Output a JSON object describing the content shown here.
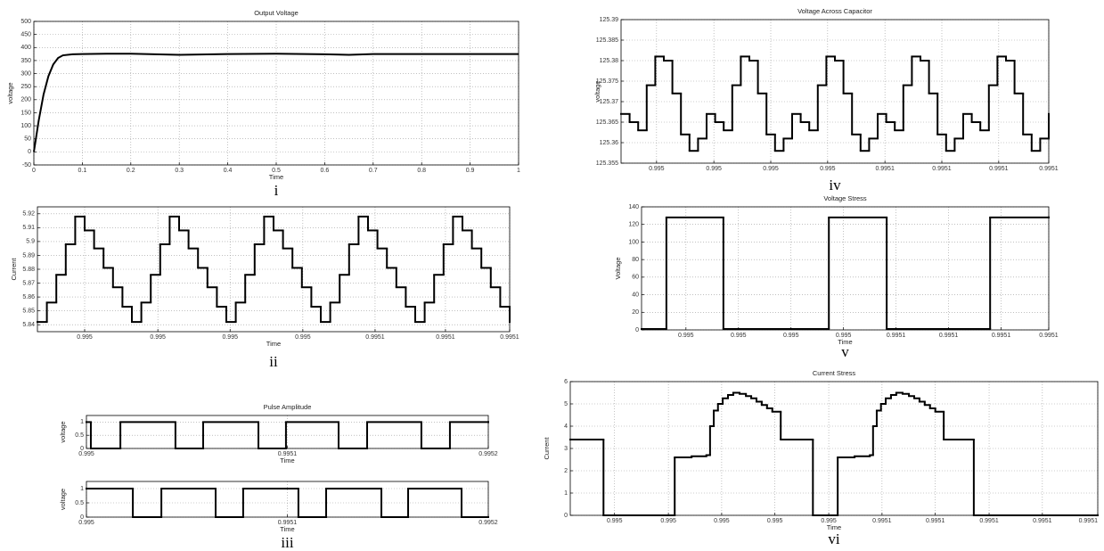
{
  "chart_data": [
    {
      "type": "line",
      "title": "Output Voltage",
      "xlabel": "Time",
      "ylabel": "voltage",
      "caption": "i",
      "x": [
        0,
        0.005,
        0.01,
        0.02,
        0.03,
        0.04,
        0.05,
        0.06,
        0.08,
        0.1,
        0.15,
        0.2,
        0.3,
        0.4,
        0.5,
        0.6,
        0.65,
        0.7,
        0.8,
        0.9,
        1
      ],
      "values": [
        0,
        60,
        120,
        220,
        290,
        335,
        360,
        370,
        374,
        375,
        376,
        376,
        372,
        375,
        376,
        374,
        372,
        375,
        375,
        375,
        375
      ],
      "color": "#000000",
      "xlim": [
        0,
        1
      ],
      "xticks": [
        0,
        0.1,
        0.2,
        0.3,
        0.4,
        0.5,
        0.6,
        0.7,
        0.8,
        0.9,
        1
      ],
      "ylim": [
        -50,
        500
      ],
      "yticks": [
        -50,
        0,
        50,
        100,
        150,
        200,
        250,
        300,
        350,
        400,
        450,
        500
      ],
      "grid": true
    },
    {
      "type": "line",
      "step": true,
      "xlabel": "Time",
      "ylabel": "Current",
      "caption": "ii",
      "x": [
        0.995,
        0.995002,
        0.995004,
        0.995006,
        0.995008,
        0.99501,
        0.995012,
        0.995014,
        0.995016,
        0.995018,
        0.99502,
        0.995022,
        0.995024,
        0.995026,
        0.995028,
        0.99503,
        0.995032,
        0.995034,
        0.995036,
        0.995038,
        0.99504,
        0.995042,
        0.995044,
        0.995046,
        0.995048,
        0.99505,
        0.995052,
        0.995054,
        0.995056,
        0.995058,
        0.99506,
        0.995062,
        0.995064,
        0.995066,
        0.995068,
        0.99507,
        0.995072,
        0.995074,
        0.995076,
        0.995078,
        0.99508,
        0.995082,
        0.995084,
        0.995086,
        0.995088,
        0.99509,
        0.995092,
        0.995094,
        0.995096,
        0.995098,
        0.9951
      ],
      "values": [
        5.842,
        5.856,
        5.876,
        5.898,
        5.918,
        5.908,
        5.895,
        5.881,
        5.867,
        5.853,
        5.842,
        5.856,
        5.876,
        5.898,
        5.918,
        5.908,
        5.895,
        5.881,
        5.867,
        5.853,
        5.842,
        5.856,
        5.876,
        5.898,
        5.918,
        5.908,
        5.895,
        5.881,
        5.867,
        5.853,
        5.842,
        5.856,
        5.876,
        5.898,
        5.918,
        5.908,
        5.895,
        5.881,
        5.867,
        5.853,
        5.842,
        5.856,
        5.876,
        5.898,
        5.918,
        5.908,
        5.895,
        5.881,
        5.867,
        5.853,
        5.842
      ],
      "color": "#000000",
      "xlim": [
        0.995,
        0.9951
      ],
      "xticks": [
        {
          "value": 0.99501,
          "label": "0.995"
        },
        {
          "value": 0.9950255,
          "label": "0.995"
        },
        {
          "value": 0.9950408,
          "label": "0.995"
        },
        {
          "value": 0.9950562,
          "label": "0.995"
        },
        {
          "value": 0.9950715,
          "label": "0.9951"
        },
        {
          "value": 0.9950864,
          "label": "0.9951"
        },
        0.9951
      ],
      "ylim": [
        5.835,
        5.925
      ],
      "yticks": [
        5.84,
        5.85,
        5.86,
        5.87,
        5.88,
        5.89,
        5.9,
        5.91,
        5.92
      ],
      "grid": true
    },
    {
      "type": "line",
      "step": true,
      "title": "Pulse Amplitude",
      "xlabel": "Time",
      "ylabel": "voltage",
      "x": [
        0.995,
        0.9950022,
        0.9950169,
        0.9950443,
        0.9950581,
        0.9950856,
        0.9950993,
        0.9951255,
        0.9951397,
        0.9951667,
        0.9951809,
        0.9952
      ],
      "values": [
        1,
        0,
        1,
        0,
        1,
        0,
        1,
        0,
        1,
        0,
        1,
        1
      ],
      "color": "#000000",
      "xlim": [
        0.995,
        0.9952
      ],
      "xticks": [
        0.995,
        0.9951,
        0.9952
      ],
      "ylim": [
        0,
        1.25
      ],
      "yticks": [
        0,
        0.5,
        1
      ],
      "grid": true
    },
    {
      "type": "line",
      "step": true,
      "xlabel": "Time",
      "ylabel": "voltage",
      "caption": "iii",
      "x": [
        0.995,
        0.9950231,
        0.9950373,
        0.9950643,
        0.995078,
        0.9951055,
        0.9951193,
        0.9951468,
        0.9951601,
        0.9951867,
        0.9952
      ],
      "values": [
        1,
        0,
        1,
        0,
        1,
        0,
        1,
        0,
        1,
        0,
        0
      ],
      "color": "#000000",
      "xlim": [
        0.995,
        0.9952
      ],
      "xticks": [
        0.995,
        0.9951,
        0.9952
      ],
      "ylim": [
        0,
        1.25
      ],
      "yticks": [
        0,
        0.5,
        1
      ],
      "grid": true
    },
    {
      "type": "line",
      "step": true,
      "title": "Voltage Across Capacitor",
      "ylabel": "voltage",
      "caption": "iv",
      "x": [
        0.995,
        0.995002,
        0.995004,
        0.995006,
        0.995008,
        0.99501,
        0.995012,
        0.995014,
        0.995016,
        0.995018,
        0.99502,
        0.995022,
        0.995024,
        0.995026,
        0.995028,
        0.99503,
        0.995032,
        0.995034,
        0.995036,
        0.995038,
        0.99504,
        0.995042,
        0.995044,
        0.995046,
        0.995048,
        0.99505,
        0.995052,
        0.995054,
        0.995056,
        0.995058,
        0.99506,
        0.995062,
        0.995064,
        0.995066,
        0.995068,
        0.99507,
        0.995072,
        0.995074,
        0.995076,
        0.995078,
        0.99508,
        0.995082,
        0.995084,
        0.995086,
        0.995088,
        0.99509,
        0.995092,
        0.995094,
        0.995096,
        0.995098,
        0.9951
      ],
      "values": [
        125.367,
        125.365,
        125.363,
        125.374,
        125.381,
        125.38,
        125.372,
        125.362,
        125.358,
        125.361,
        125.367,
        125.365,
        125.363,
        125.374,
        125.381,
        125.38,
        125.372,
        125.362,
        125.358,
        125.361,
        125.367,
        125.365,
        125.363,
        125.374,
        125.381,
        125.38,
        125.372,
        125.362,
        125.358,
        125.361,
        125.367,
        125.365,
        125.363,
        125.374,
        125.381,
        125.38,
        125.372,
        125.362,
        125.358,
        125.361,
        125.367,
        125.365,
        125.363,
        125.374,
        125.381,
        125.38,
        125.372,
        125.362,
        125.358,
        125.361,
        125.367
      ],
      "color": "#000000",
      "xlim": [
        0.995,
        0.9951
      ],
      "xticks": [
        {
          "value": 0.9950083,
          "label": "0.995"
        },
        {
          "value": 0.9950217,
          "label": "0.995"
        },
        {
          "value": 0.995035,
          "label": "0.995"
        },
        {
          "value": 0.9950483,
          "label": "0.995"
        },
        {
          "value": 0.9950617,
          "label": "0.9951"
        },
        {
          "value": 0.995075,
          "label": "0.9951"
        },
        {
          "value": 0.9950883,
          "label": "0.9951"
        },
        0.9951
      ],
      "ylim": [
        125.355,
        125.39
      ],
      "yticks": [
        125.355,
        125.36,
        125.365,
        125.37,
        125.375,
        125.38,
        125.385,
        125.39
      ],
      "grid": true
    },
    {
      "type": "line",
      "step": true,
      "title": "Voltage Stress",
      "xlabel": "Time",
      "ylabel": "Voltage",
      "caption": "v",
      "x": [
        0.995,
        0.9950061,
        0.9950201,
        0.995046,
        0.9950602,
        0.9950856,
        0.9951
      ],
      "values": [
        1,
        128,
        1,
        128,
        1,
        128,
        128
      ],
      "color": "#000000",
      "xlim": [
        0.995,
        0.9951
      ],
      "xticks": [
        {
          "value": 0.9950109,
          "label": "0.995"
        },
        {
          "value": 0.9950238,
          "label": "0.995"
        },
        {
          "value": 0.9950367,
          "label": "0.995"
        },
        {
          "value": 0.9950496,
          "label": "0.995"
        },
        {
          "value": 0.9950625,
          "label": "0.9951"
        },
        {
          "value": 0.9950754,
          "label": "0.9951"
        },
        {
          "value": 0.9950883,
          "label": "0.9951"
        },
        0.9951
      ],
      "ylim": [
        0,
        140
      ],
      "yticks": [
        0,
        20,
        40,
        60,
        80,
        100,
        120,
        140
      ],
      "grid": true
    },
    {
      "type": "line",
      "step": true,
      "title": "Current Stress",
      "xlabel": "Time",
      "ylabel": "Current",
      "caption": "vi",
      "x": [
        0.995,
        0.9950063,
        0.9950198,
        0.995023,
        0.9950258,
        0.9950265,
        0.9950272,
        0.995028,
        0.9950289,
        0.9950299,
        0.9950309,
        0.9950321,
        0.9950333,
        0.9950343,
        0.9950353,
        0.9950363,
        0.9950373,
        0.9950383,
        0.9950399,
        0.995046,
        0.9950507,
        0.9950539,
        0.9950568,
        0.9950574,
        0.9950581,
        0.9950589,
        0.9950598,
        0.9950608,
        0.9950618,
        0.995063,
        0.9950642,
        0.9950652,
        0.9950662,
        0.9950672,
        0.9950682,
        0.9950692,
        0.9950708,
        0.9950765,
        0.9951
      ],
      "values": [
        3.4,
        0,
        2.6,
        2.65,
        2.7,
        4.0,
        4.7,
        5.0,
        5.25,
        5.4,
        5.5,
        5.45,
        5.35,
        5.25,
        5.1,
        4.95,
        4.8,
        4.65,
        3.4,
        0,
        2.6,
        2.65,
        2.7,
        4.0,
        4.7,
        5.0,
        5.25,
        5.4,
        5.5,
        5.45,
        5.35,
        5.25,
        5.1,
        4.95,
        4.8,
        4.65,
        3.4,
        0,
        0
      ],
      "color": "#000000",
      "xlim": [
        0.995,
        0.9951
      ],
      "xticks": [
        {
          "value": 0.9950084,
          "label": "0.995"
        },
        {
          "value": 0.9950186,
          "label": "0.995"
        },
        {
          "value": 0.9950287,
          "label": "0.995"
        },
        {
          "value": 0.9950388,
          "label": "0.995"
        },
        {
          "value": 0.995049,
          "label": "0.995"
        },
        {
          "value": 0.9950591,
          "label": "0.9951"
        },
        {
          "value": 0.9950692,
          "label": "0.9951"
        },
        {
          "value": 0.9950794,
          "label": "0.9951"
        },
        {
          "value": 0.9950895,
          "label": "0.9951"
        },
        0.9951
      ],
      "ylim": [
        0,
        6
      ],
      "yticks": [
        0,
        1,
        2,
        3,
        4,
        5,
        6
      ],
      "grid": true
    }
  ]
}
